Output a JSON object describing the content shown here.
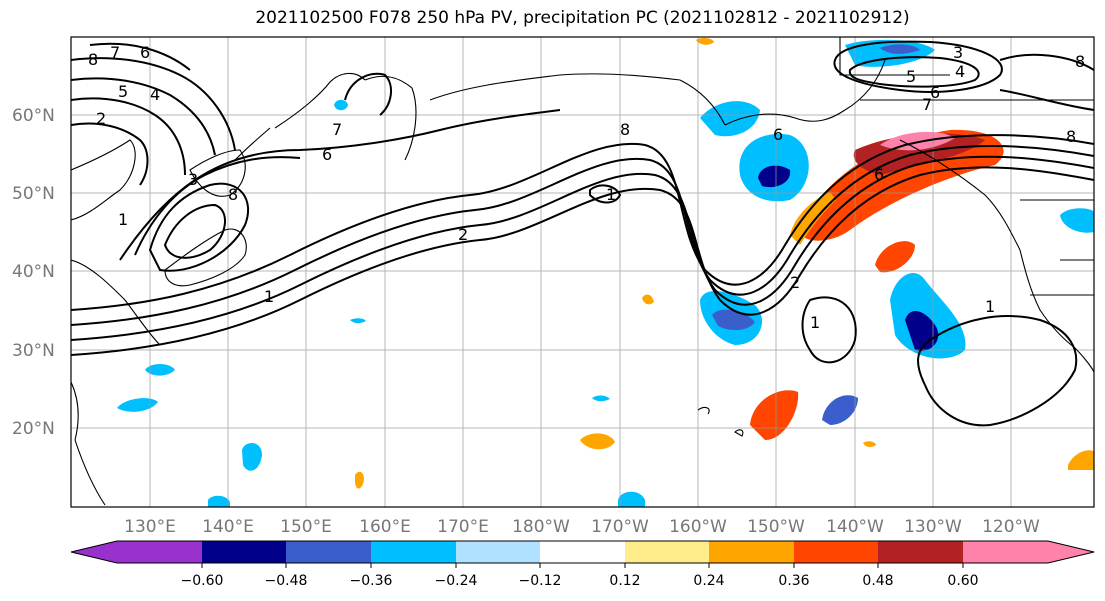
{
  "title": "2021102500 F078 250 hPa PV, precipitation PC (2021102812 - 2021102912)",
  "lat_labels": [
    "60°N",
    "50°N",
    "40°N",
    "30°N",
    "20°N"
  ],
  "lon_labels": [
    "130°E",
    "140°E",
    "150°E",
    "160°E",
    "170°E",
    "180°W",
    "170°W",
    "160°W",
    "150°W",
    "140°W",
    "130°W",
    "120°W"
  ],
  "colorbar": {
    "ticks": [
      "−0.60",
      "−0.48",
      "−0.36",
      "−0.24",
      "−0.12",
      "0.12",
      "0.24",
      "0.36",
      "0.48",
      "0.60"
    ],
    "colors": [
      "#9932cc",
      "#00008b",
      "#3a5fcd",
      "#00bfff",
      "#b0e2ff",
      "#ffffff",
      "#ffec8b",
      "#ffa500",
      "#ff4500",
      "#b22222",
      "#ff82ab"
    ]
  },
  "contour_labels": [
    "8",
    "7",
    "6",
    "5",
    "4",
    "3",
    "2",
    "1",
    "8",
    "7",
    "6",
    "2",
    "1",
    "8",
    "6",
    "1",
    "2",
    "1",
    "3",
    "4",
    "5",
    "6",
    "7",
    "6",
    "8",
    "1",
    "8"
  ]
}
